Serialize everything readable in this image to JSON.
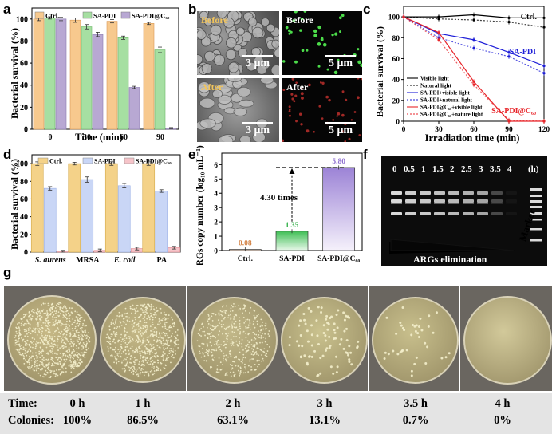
{
  "panels": {
    "a": "a",
    "b": "b",
    "c": "c",
    "d": "d",
    "e": "e",
    "f": "f",
    "g": "g"
  },
  "panel_a": {
    "ylabel": "Bacterial survival (%)",
    "xlabel": "Time (min)",
    "legend": [
      "Ctrl.",
      "SA-PDI",
      "SA-PDI@C₆₀"
    ],
    "yticks": [
      "0",
      "20",
      "40",
      "60",
      "80",
      "100"
    ],
    "colors": [
      "#f7c98e",
      "#a6dfa2",
      "#b8a8d3"
    ]
  },
  "panel_b": {
    "before": "Before",
    "after": "After",
    "scale1": "3 μm",
    "scale2": "5 μm"
  },
  "panel_c": {
    "ylabel": "Bacterial survival (%)",
    "xlabel": "Irradiation time (min)",
    "annot_ctrl": "Ctrl.",
    "annot_sapdi": "SA-PDI",
    "annot_sapdic60": "SA-PDI@C₆₀",
    "legend": [
      "Visible light",
      "Natural light",
      "SA-PDI+visible light",
      "SA-PDI+natural light",
      "SA-PDI@C₆₀+visible light",
      "SA-PDI@C₆₀+nature light"
    ],
    "yticks": [
      "0",
      "20",
      "40",
      "60",
      "80",
      "100"
    ]
  },
  "panel_d": {
    "ylabel": "Bacterial survival (%)",
    "legend": [
      "Ctrl.",
      "SA-PDI",
      "SA-PDI@C₆₀"
    ],
    "yticks": [
      "0",
      "20",
      "40",
      "60",
      "80",
      "100"
    ]
  },
  "panel_e": {
    "ylabel": "ARGs copy number (log₁₀ mL⁻¹)",
    "annotation": "4.30 times",
    "value_labels": [
      "0.08",
      "1.35",
      "5.80"
    ],
    "yticks": [
      "0",
      "1",
      "2",
      "3",
      "4",
      "5",
      "6"
    ]
  },
  "panel_f": {
    "lanes": [
      "0",
      "0.5",
      "1",
      "1.5",
      "2",
      "2.5",
      "3",
      "3.5",
      "4",
      "(h)"
    ],
    "elimination": "ARGs elimination",
    "marker": "Marker"
  },
  "panel_g": {
    "time_label": "Time:",
    "colonies_label": "Colonies:",
    "times": [
      "0 h",
      "1 h",
      "2 h",
      "3 h",
      "3.5 h",
      "4 h"
    ],
    "colonies": [
      "100%",
      "86.5%",
      "63.1%",
      "13.1%",
      "0.7%",
      "0%"
    ]
  },
  "chart_data": [
    {
      "type": "bar",
      "categories": [
        "0",
        "30",
        "60",
        "90"
      ],
      "xlabel": "Time (min)",
      "ylabel": "Bacterial survival (%)",
      "ylim": [
        0,
        110
      ],
      "series": [
        {
          "name": "Ctrl.",
          "values": [
            100,
            99,
            98,
            96
          ],
          "errors": [
            1.5,
            2,
            1.5,
            1
          ]
        },
        {
          "name": "SA-PDI",
          "values": [
            101,
            93,
            83,
            72
          ],
          "errors": [
            1,
            2,
            1.5,
            2.5
          ]
        },
        {
          "name": "SA-PDI@C₆₀",
          "values": [
            100,
            86,
            38,
            1
          ],
          "errors": [
            1.5,
            2,
            1,
            0.5
          ]
        }
      ]
    },
    {
      "type": "line",
      "x": [
        0,
        30,
        60,
        90,
        120
      ],
      "xlabel": "Irradiation time (min)",
      "ylabel": "Bacterial survival (%)",
      "xlim": [
        0,
        120
      ],
      "ylim": [
        0,
        110
      ],
      "series": [
        {
          "name": "Visible light",
          "values": [
            100,
            100,
            102,
            99,
            99
          ],
          "color": "#000000",
          "dash": false
        },
        {
          "name": "Natural light",
          "values": [
            100,
            98,
            97,
            95,
            90
          ],
          "color": "#000000",
          "dash": true
        },
        {
          "name": "SA-PDI+visible light",
          "values": [
            100,
            84,
            78,
            66,
            53
          ],
          "color": "#1f1fd8",
          "dash": false
        },
        {
          "name": "SA-PDI+natural light",
          "values": [
            100,
            80,
            70,
            62,
            46
          ],
          "color": "#1f1fd8",
          "dash": true
        },
        {
          "name": "SA-PDI@C₆₀+visible light",
          "values": [
            100,
            85,
            38,
            0,
            0
          ],
          "color": "#e8262b",
          "dash": false
        },
        {
          "name": "SA-PDI@C₆₀+nature light",
          "values": [
            100,
            78,
            35,
            1,
            0
          ],
          "color": "#e8262b",
          "dash": true
        }
      ]
    },
    {
      "type": "bar",
      "categories": [
        "S. aureus",
        "MRSA",
        "E. coil",
        "PA"
      ],
      "ylabel": "Bacterial survival (%)",
      "ylim": [
        0,
        110
      ],
      "series": [
        {
          "name": "Ctrl.",
          "values": [
            100,
            100,
            100,
            100
          ],
          "errors": [
            2,
            1.5,
            2,
            2
          ]
        },
        {
          "name": "SA-PDI",
          "values": [
            72,
            82,
            75,
            69
          ],
          "errors": [
            2,
            3,
            2.5,
            1.5
          ]
        },
        {
          "name": "SA-PDI@C₆₀",
          "values": [
            1,
            2,
            4,
            5
          ],
          "errors": [
            1,
            1.5,
            1.5,
            1.5
          ]
        }
      ]
    },
    {
      "type": "bar",
      "categories": [
        "Ctrl.",
        "SA-PDI",
        "SA-PDI@C₆₀"
      ],
      "ylabel": "ARGs copy number (log₁₀ mL⁻¹)",
      "ylim": [
        0,
        6.8
      ],
      "values": [
        0.08,
        1.35,
        5.8
      ],
      "colors": [
        "#d4864b",
        "#34b24a",
        "#8e6fcf"
      ]
    }
  ]
}
